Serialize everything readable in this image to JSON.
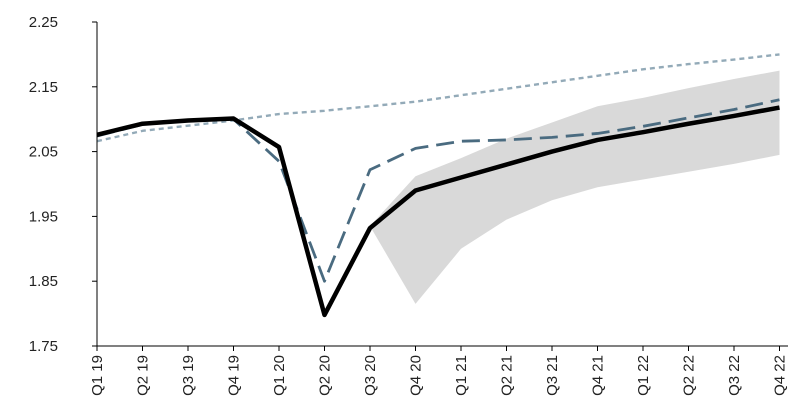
{
  "chart_data": {
    "type": "line",
    "title": "",
    "xlabel": "",
    "ylabel": "",
    "categories": [
      "Q1 19",
      "Q2 19",
      "Q3 19",
      "Q4 19",
      "Q1 20",
      "Q2 20",
      "Q3 20",
      "Q4 20",
      "Q1 21",
      "Q2 21",
      "Q3 21",
      "Q4 21",
      "Q1 22",
      "Q2 22",
      "Q3 22",
      "Q4 22"
    ],
    "ylim": [
      1.75,
      2.25
    ],
    "yticks": [
      "1.75",
      "1.85",
      "1.95",
      "2.05",
      "2.15",
      "2.25"
    ],
    "grid": false,
    "legend": "none",
    "band": {
      "start_index": 6,
      "lower": [
        1.935,
        1.815,
        1.9,
        1.945,
        1.975,
        1.995,
        2.007,
        2.019,
        2.031,
        2.045
      ],
      "upper": [
        1.935,
        2.012,
        2.04,
        2.07,
        2.095,
        2.12,
        2.133,
        2.148,
        2.162,
        2.175
      ],
      "color": "#d9d9d9"
    },
    "series": [
      {
        "style": "solid",
        "color": "#000000",
        "values": [
          2.076,
          2.093,
          2.098,
          2.101,
          2.057,
          1.798,
          1.932,
          1.99,
          2.01,
          2.03,
          2.05,
          2.068,
          2.08,
          2.093,
          2.105,
          2.118
        ]
      },
      {
        "style": "dashed",
        "color": "#4a6b80",
        "values": [
          2.074,
          2.092,
          2.098,
          2.1,
          2.035,
          1.85,
          2.022,
          2.055,
          2.066,
          2.068,
          2.072,
          2.078,
          2.089,
          2.102,
          2.115,
          2.13
        ]
      },
      {
        "style": "dotted",
        "color": "#93aab8",
        "values": [
          2.066,
          2.082,
          2.09,
          2.098,
          2.108,
          2.113,
          2.12,
          2.127,
          2.137,
          2.147,
          2.157,
          2.167,
          2.177,
          2.185,
          2.192,
          2.2
        ]
      }
    ]
  }
}
